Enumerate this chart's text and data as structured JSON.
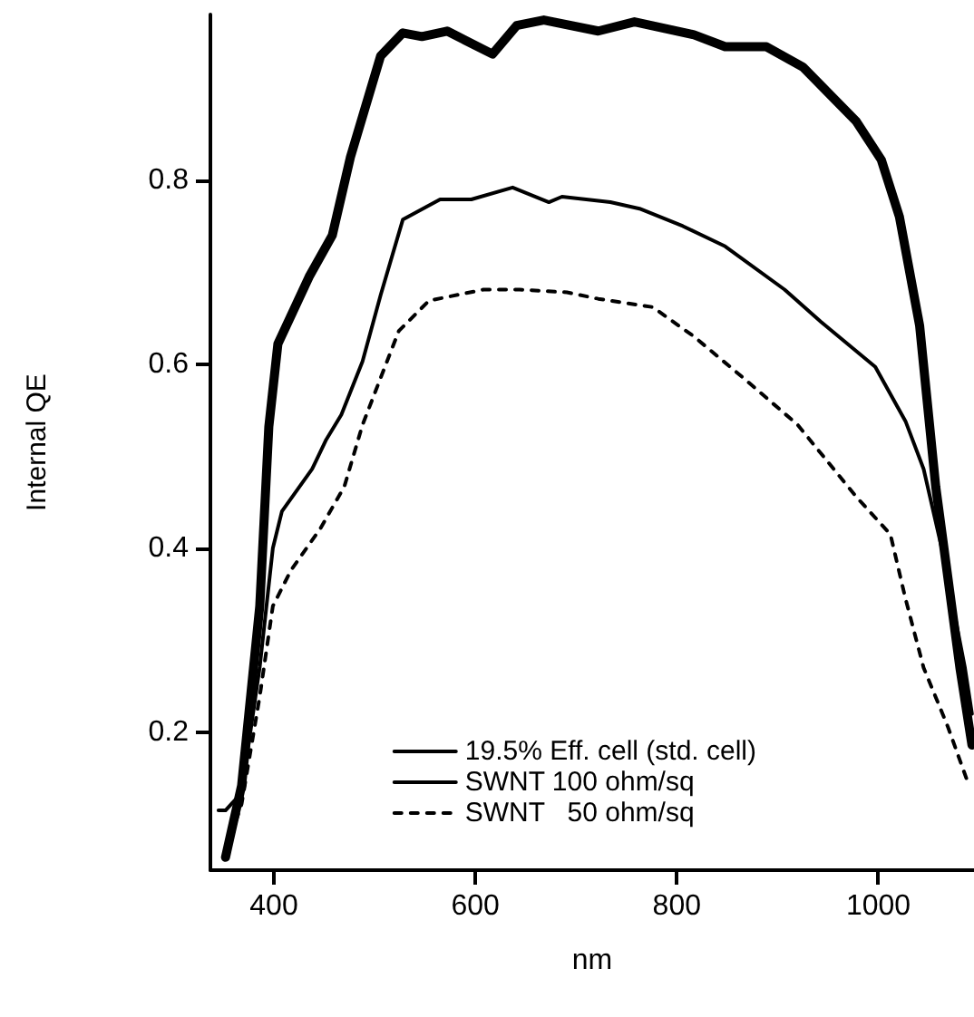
{
  "chart_data": {
    "type": "line",
    "xlabel": "nm",
    "ylabel": "Internal QE",
    "xlim": [
      337,
      1095
    ],
    "ylim": [
      0.05,
      0.98
    ],
    "xticks": [
      400,
      600,
      800,
      1000
    ],
    "yticks": [
      0.2,
      0.4,
      0.6,
      0.8
    ],
    "grid": false,
    "legend": "bottom right",
    "marker": "none",
    "series": [
      {
        "name": "19.5% Eff. cell (std. cell)",
        "color": "#000000",
        "line_style": "solid",
        "x": [
          352,
          368,
          386,
          395,
          404,
          435,
          458,
          476,
          506,
          528,
          547,
          572,
          590,
          617,
          641,
          668,
          722,
          758,
          817,
          848,
          889,
          925,
          978,
          1003,
          1021,
          1041,
          1057,
          1081,
          1093
        ],
        "values": [
          0.064,
          0.142,
          0.337,
          0.532,
          0.622,
          0.695,
          0.74,
          0.825,
          0.935,
          0.96,
          0.956,
          0.962,
          0.952,
          0.937,
          0.968,
          0.974,
          0.962,
          0.972,
          0.958,
          0.945,
          0.945,
          0.923,
          0.864,
          0.822,
          0.76,
          0.642,
          0.467,
          0.27,
          0.186
        ]
      },
      {
        "name": "SWNT 100 ohm/sq",
        "color": "#000000",
        "line_style": "solid",
        "x": [
          345,
          352,
          368,
          386,
          399,
          408,
          438,
          452,
          467,
          488,
          506,
          528,
          565,
          596,
          637,
          673,
          686,
          734,
          763,
          806,
          848,
          907,
          943,
          997,
          1027,
          1045,
          1063,
          1086,
          1093
        ],
        "values": [
          0.115,
          0.115,
          0.134,
          0.271,
          0.4,
          0.44,
          0.486,
          0.518,
          0.545,
          0.603,
          0.675,
          0.757,
          0.779,
          0.779,
          0.792,
          0.776,
          0.782,
          0.776,
          0.769,
          0.75,
          0.728,
          0.681,
          0.646,
          0.597,
          0.538,
          0.486,
          0.4,
          0.27,
          0.22
        ]
      },
      {
        "name": "SWNT   50 ohm/sq",
        "color": "#000000",
        "line_style": "dashed",
        "x": [
          352,
          368,
          386,
          399,
          417,
          446,
          470,
          488,
          506,
          524,
          554,
          608,
          644,
          691,
          722,
          776,
          817,
          866,
          920,
          978,
          1012,
          1027,
          1045,
          1069,
          1090
        ],
        "values": [
          0.07,
          0.122,
          0.239,
          0.337,
          0.376,
          0.421,
          0.467,
          0.534,
          0.585,
          0.636,
          0.669,
          0.681,
          0.681,
          0.678,
          0.671,
          0.662,
          0.63,
          0.585,
          0.534,
          0.456,
          0.415,
          0.345,
          0.27,
          0.206,
          0.142
        ]
      }
    ]
  }
}
